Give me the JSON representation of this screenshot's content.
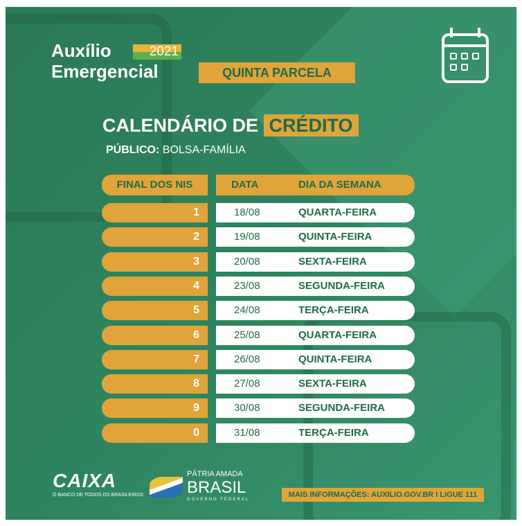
{
  "brand": {
    "line1": "Auxílio",
    "year": "2021",
    "line2": "Emergencial"
  },
  "parcela": "QUINTA PARCELA",
  "title": {
    "prefix": "CALENDÁRIO DE",
    "highlight": "CRÉDITO"
  },
  "publico": {
    "label": "PÚBLICO:",
    "value": "BOLSA-FAMÍLIA"
  },
  "table": {
    "headers": [
      "FINAL DOS NIS",
      "DATA",
      "DIA DA SEMANA"
    ],
    "rows": [
      {
        "nis": "1",
        "data": "18/08",
        "dia": "QUARTA-FEIRA"
      },
      {
        "nis": "2",
        "data": "19/08",
        "dia": "QUINTA-FEIRA"
      },
      {
        "nis": "3",
        "data": "20/08",
        "dia": "SEXTA-FEIRA"
      },
      {
        "nis": "4",
        "data": "23/08",
        "dia": "SEGUNDA-FEIRA"
      },
      {
        "nis": "5",
        "data": "24/08",
        "dia": "TERÇA-FEIRA"
      },
      {
        "nis": "6",
        "data": "25/08",
        "dia": "QUARTA-FEIRA"
      },
      {
        "nis": "7",
        "data": "26/08",
        "dia": "QUINTA-FEIRA"
      },
      {
        "nis": "8",
        "data": "27/08",
        "dia": "SEXTA-FEIRA"
      },
      {
        "nis": "9",
        "data": "30/08",
        "dia": "SEGUNDA-FEIRA"
      },
      {
        "nis": "0",
        "data": "31/08",
        "dia": "TERÇA-FEIRA"
      }
    ]
  },
  "footer": {
    "caixa": "CAIXA",
    "caixa_tag": "O BANCO DE TODOS OS BRASILEIROS",
    "gov1": "PÁTRIA AMADA",
    "gov2": "BRASIL",
    "gov3": "GOVERNO FEDERAL",
    "info": "MAIS INFORMAÇÕES: AUXILIO.GOV.BR I LIGUE 111"
  },
  "colors": {
    "green": "#2b7a55",
    "gold": "#e0a43a",
    "dark_green": "#1f6b48"
  },
  "icons": [
    "calendar-icon"
  ]
}
